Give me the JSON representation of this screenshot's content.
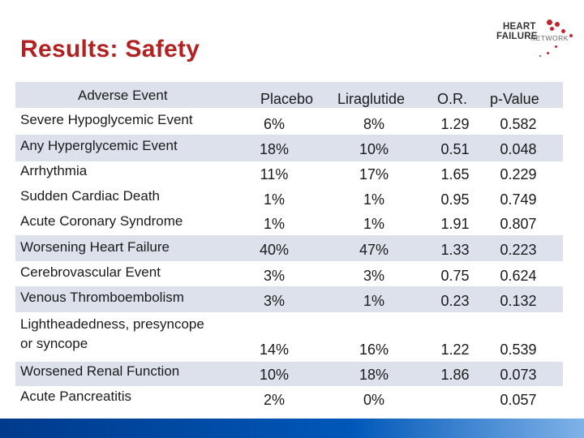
{
  "slide": {
    "title": "Results:  Safety"
  },
  "logo": {
    "line1": "HEART",
    "line2": "FAILURE",
    "line3": "NETWORK",
    "dot_color": "#c0272d"
  },
  "table": {
    "headers": {
      "event": "Adverse Event",
      "placebo": "Placebo",
      "liraglutide": "Liraglutide",
      "or": "O.R.",
      "p": "p-Value"
    },
    "rows": [
      {
        "event": "Severe Hypoglycemic Event",
        "placebo": "6%",
        "liraglutide": "8%",
        "or": "1.29",
        "p": "0.582"
      },
      {
        "event": "Any Hyperglycemic Event",
        "placebo": "18%",
        "liraglutide": "10%",
        "or": "0.51",
        "p": "0.048"
      },
      {
        "event": "Arrhythmia",
        "placebo": "11%",
        "liraglutide": "17%",
        "or": "1.65",
        "p": "0.229"
      },
      {
        "event": "Sudden Cardiac Death",
        "placebo": "1%",
        "liraglutide": "1%",
        "or": "0.95",
        "p": "0.749"
      },
      {
        "event": "Acute Coronary Syndrome",
        "placebo": "1%",
        "liraglutide": "1%",
        "or": "1.91",
        "p": "0.807"
      },
      {
        "event": "Worsening Heart Failure",
        "placebo": "40%",
        "liraglutide": "47%",
        "or": "1.33",
        "p": "0.223"
      },
      {
        "event": "Cerebrovascular Event",
        "placebo": "3%",
        "liraglutide": "3%",
        "or": "0.75",
        "p": "0.624"
      },
      {
        "event": "Venous Thromboembolism",
        "placebo": "3%",
        "liraglutide": "1%",
        "or": "0.23",
        "p": "0.132"
      },
      {
        "event_line1": "Lightheadedness, presyncope",
        "event_line2": "or syncope",
        "placebo": "14%",
        "liraglutide": "16%",
        "or": "1.22",
        "p": "0.539"
      },
      {
        "event": "Worsened Renal Function",
        "placebo": "10%",
        "liraglutide": "18%",
        "or": "1.86",
        "p": "0.073"
      },
      {
        "event": "Acute Pancreatitis",
        "placebo": "2%",
        "liraglutide": "0%",
        "or": "",
        "p": "0.057"
      }
    ]
  },
  "colors": {
    "title": "#b22222",
    "band": "#dde1ec",
    "footer_bar": "#0057b8"
  }
}
